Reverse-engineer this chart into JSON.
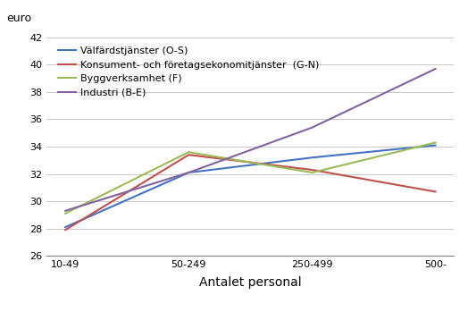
{
  "categories": [
    "10-49",
    "50-249",
    "250-499",
    "500-"
  ],
  "series": [
    {
      "label": "Välfärdstjänster (O-S)",
      "color": "#4472C4",
      "values": [
        28.1,
        32.1,
        33.2,
        34.1
      ]
    },
    {
      "label": "Konsument- och företagsekonomitjänster  (G-N)",
      "color": "#C0504D",
      "values": [
        27.9,
        33.4,
        32.3,
        30.7
      ]
    },
    {
      "label": "Byggverksamhet (F)",
      "color": "#9BBB59",
      "values": [
        29.1,
        33.6,
        32.1,
        34.3
      ]
    },
    {
      "label": "Industri (B-E)",
      "color": "#8064A2",
      "values": [
        29.3,
        32.1,
        35.4,
        39.7
      ]
    }
  ],
  "ylabel": "euro",
  "xlabel": "Antalet personal",
  "ylim": [
    26,
    42
  ],
  "yticks": [
    26,
    28,
    30,
    32,
    34,
    36,
    38,
    40,
    42
  ],
  "background_color": "#ffffff",
  "grid_color": "#c8c8c8",
  "ylabel_fontsize": 9,
  "xlabel_fontsize": 10,
  "tick_fontsize": 8,
  "legend_fontsize": 8,
  "line_width": 1.5
}
